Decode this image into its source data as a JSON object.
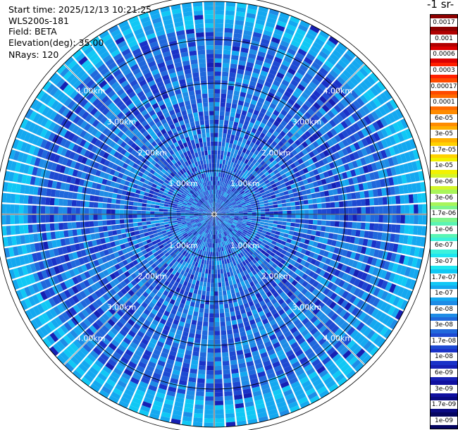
{
  "info": {
    "start_time": "Start time: 2025/12/13 10:21:25",
    "instrument": "WLS200s-181",
    "field": "Field: BETA",
    "elevation": "Elevation(deg): 35.00",
    "nrays": "NRays: 120"
  },
  "legend": {
    "title": "-1 sr-",
    "labels": [
      "0.0017",
      "0.001",
      "0.0006",
      "0.0003",
      "0.00017",
      "0.0001",
      "6e-05",
      "3e-05",
      "1.7e-05",
      "1e-05",
      "6e-06",
      "3e-06",
      "1.7e-06",
      "1e-06",
      "6e-07",
      "3e-07",
      "1.7e-07",
      "1e-07",
      "6e-08",
      "3e-08",
      "1.7e-08",
      "1e-08",
      "6e-09",
      "3e-09",
      "1.7e-09",
      "1e-09"
    ],
    "colors": [
      "#8b0000",
      "#b00000",
      "#dc0000",
      "#ff2000",
      "#ff4a00",
      "#ff6a00",
      "#ff8c00",
      "#ffb000",
      "#ffd200",
      "#f2f200",
      "#d4f52a",
      "#a8f55a",
      "#7ef58c",
      "#5af5b4",
      "#3cf2dc",
      "#1ee6f0",
      "#10c8f5",
      "#14a8f0",
      "#1e8ce6",
      "#2068dc",
      "#1e4ad2",
      "#1a32c8",
      "#1620b4",
      "#1010a0",
      "#0a0a82",
      "#050560"
    ]
  },
  "chart_data": {
    "type": "heatmap",
    "projection": "polar (PPI scan)",
    "field": "BETA",
    "elevation_deg": 35.0,
    "n_rays": 120,
    "range_ring_labels": [
      "1.00km",
      "2.00km",
      "3.00km",
      "4.00km",
      "5.00km"
    ],
    "range_rings_km": [
      1,
      2,
      3,
      4,
      5
    ],
    "color_scale": "log",
    "value_range": [
      1e-09,
      0.0017
    ],
    "dominant_value_range": [
      1e-08,
      1e-07
    ],
    "enhanced_band": {
      "range_km": [
        4.3,
        5.1
      ],
      "value_approx": 1.7e-07
    }
  }
}
